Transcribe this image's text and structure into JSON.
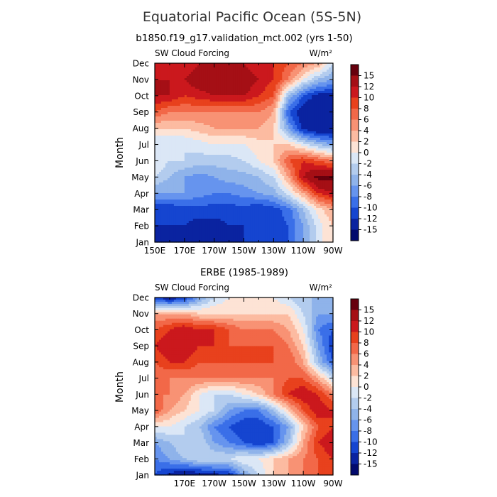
{
  "figure": {
    "title": "Equatorial Pacific Ocean (5S-5N)"
  },
  "colorbar": {
    "levels": [
      "15",
      "12",
      "10",
      "8",
      "6",
      "4",
      "2",
      "0",
      "-2",
      "-4",
      "-6",
      "-8",
      "-10",
      "-12",
      "-15"
    ],
    "colors": [
      "#67000d",
      "#a50f15",
      "#cb181d",
      "#e8411d",
      "#f26848",
      "#f89274",
      "#fcbba1",
      "#fde3d5",
      "#dbe7f6",
      "#b3ccee",
      "#8fb3ea",
      "#6694ee",
      "#3a6fe8",
      "#1545d0",
      "#0a23a0",
      "#020a6d"
    ]
  },
  "chart_data": [
    {
      "type": "heatmap",
      "title": "b1850.f19_g17.validation_mct.002 (yrs 1-50)",
      "left_label": "SW Cloud Forcing",
      "units_label": "W/m²",
      "ylabel": "Month",
      "x_tick_labels": [
        "150E",
        "170E",
        "170W",
        "150W",
        "130W",
        "110W",
        "90W"
      ],
      "y_tick_labels": [
        "Jan",
        "Feb",
        "Mar",
        "Apr",
        "May",
        "Jun",
        "Jul",
        "Aug",
        "Sep",
        "Oct",
        "Nov",
        "Dec"
      ],
      "x_values": [
        150,
        160,
        170,
        180,
        190,
        200,
        210,
        220,
        230,
        240,
        250,
        260,
        270
      ],
      "z": [
        [
          -12,
          -13,
          -13,
          -12,
          -13,
          -13,
          -12,
          -12,
          -11,
          -10,
          -6,
          -1,
          2
        ],
        [
          -12,
          -12,
          -12,
          -13,
          -13,
          -12,
          -12,
          -12,
          -11,
          -10,
          -6,
          -1,
          2
        ],
        [
          -12,
          -12,
          -11,
          -11,
          -11,
          -11,
          -11,
          -12,
          -11,
          -9,
          -4,
          1,
          4
        ],
        [
          -6,
          -6,
          -6,
          -7,
          -8,
          -8,
          -7,
          -6,
          -5,
          -1,
          4,
          10,
          12
        ],
        [
          -2,
          -4,
          -6,
          -7,
          -6,
          -5,
          -5,
          -4,
          -2,
          4,
          12,
          16,
          16
        ],
        [
          0,
          -2,
          -2,
          -3,
          -3,
          -3,
          -2,
          0,
          2,
          8,
          10,
          8,
          6
        ],
        [
          -2,
          -2,
          -2,
          -1,
          0,
          0,
          0,
          1,
          2,
          2,
          -1,
          -4,
          -6
        ],
        [
          2,
          2,
          2,
          3,
          4,
          4,
          4,
          4,
          2,
          -6,
          -13,
          -15,
          -15
        ],
        [
          8,
          6,
          6,
          6,
          6,
          6,
          6,
          6,
          4,
          -10,
          -14,
          -15,
          -15
        ],
        [
          12,
          12,
          10,
          11,
          12,
          12,
          12,
          10,
          8,
          -4,
          -10,
          -13,
          -13
        ],
        [
          12,
          12,
          12,
          14,
          14,
          14,
          14,
          12,
          10,
          6,
          0,
          -4,
          -6
        ],
        [
          10,
          10,
          10,
          12,
          12,
          12,
          12,
          10,
          10,
          8,
          6,
          4,
          -2
        ]
      ]
    },
    {
      "type": "heatmap",
      "title": "ERBE (1985-1989)",
      "left_label": "SW Cloud Forcing",
      "units_label": "W/m²",
      "ylabel": "Month",
      "x_tick_labels": [
        "170E",
        "170W",
        "150W",
        "130W",
        "110W",
        "90W"
      ],
      "y_tick_labels": [
        "Jan",
        "Feb",
        "Mar",
        "Apr",
        "May",
        "Jun",
        "Jul",
        "Aug",
        "Sep",
        "Oct",
        "Nov",
        "Dec"
      ],
      "x_values": [
        150,
        160,
        170,
        180,
        190,
        200,
        210,
        220,
        230,
        240,
        250,
        260,
        270
      ],
      "z": [
        [
          -10,
          -13,
          -15,
          -14,
          -13,
          -12,
          -6,
          -2,
          2,
          4,
          6,
          8,
          8
        ],
        [
          -8,
          -6,
          -4,
          -2,
          -2,
          -2,
          0,
          0,
          2,
          4,
          6,
          8,
          10
        ],
        [
          -6,
          -4,
          -2,
          -2,
          -6,
          -8,
          -10,
          -12,
          -10,
          -4,
          4,
          10,
          12
        ],
        [
          0,
          0,
          -2,
          -4,
          -8,
          -10,
          -12,
          -12,
          -10,
          -6,
          2,
          8,
          10
        ],
        [
          8,
          4,
          2,
          0,
          -2,
          -6,
          -8,
          -8,
          -4,
          2,
          8,
          12,
          10
        ],
        [
          6,
          6,
          4,
          0,
          -2,
          -2,
          0,
          2,
          6,
          10,
          12,
          10,
          6
        ],
        [
          6,
          6,
          6,
          6,
          6,
          6,
          6,
          6,
          6,
          8,
          8,
          4,
          -2
        ],
        [
          8,
          10,
          10,
          8,
          8,
          8,
          8,
          8,
          8,
          8,
          4,
          -4,
          -10
        ],
        [
          10,
          12,
          12,
          10,
          10,
          8,
          8,
          8,
          8,
          6,
          2,
          -6,
          -12
        ],
        [
          8,
          10,
          12,
          10,
          10,
          8,
          6,
          6,
          6,
          4,
          0,
          -8,
          -10
        ],
        [
          4,
          4,
          4,
          2,
          2,
          2,
          2,
          2,
          2,
          2,
          -2,
          -6,
          -6
        ],
        [
          -12,
          -14,
          -12,
          -6,
          -2,
          0,
          0,
          0,
          0,
          -2,
          -4,
          -4,
          -4
        ]
      ]
    }
  ]
}
